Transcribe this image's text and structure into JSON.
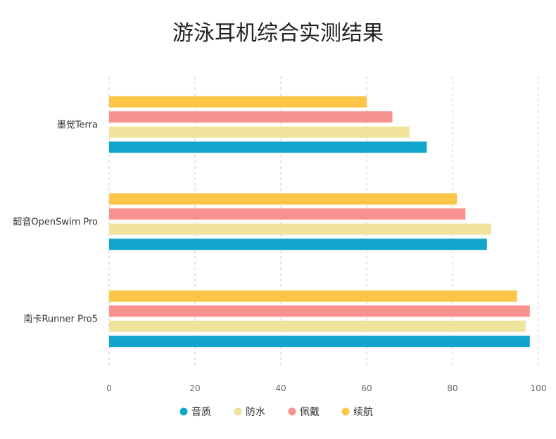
{
  "chart_data": {
    "type": "bar",
    "orientation": "horizontal",
    "title": "游泳耳机综合实测结果",
    "categories": [
      "南卡Runner Pro5",
      "韶音OpenSwim Pro",
      "墨觉Terra"
    ],
    "series": [
      {
        "name": "音质",
        "color": "#12A5CC",
        "values": [
          98,
          88,
          74
        ]
      },
      {
        "name": "防水",
        "color": "#F0E39C",
        "values": [
          97,
          89,
          70
        ]
      },
      {
        "name": "佩戴",
        "color": "#F7928F",
        "values": [
          98,
          83,
          66
        ]
      },
      {
        "name": "续航",
        "color": "#FBC647",
        "values": [
          95,
          81,
          60
        ]
      }
    ],
    "xlim": [
      0,
      100
    ],
    "xticks": [
      "0",
      "20",
      "40",
      "60",
      "80",
      "100"
    ],
    "grid": "vertical-dashed",
    "legend_position": "bottom"
  }
}
